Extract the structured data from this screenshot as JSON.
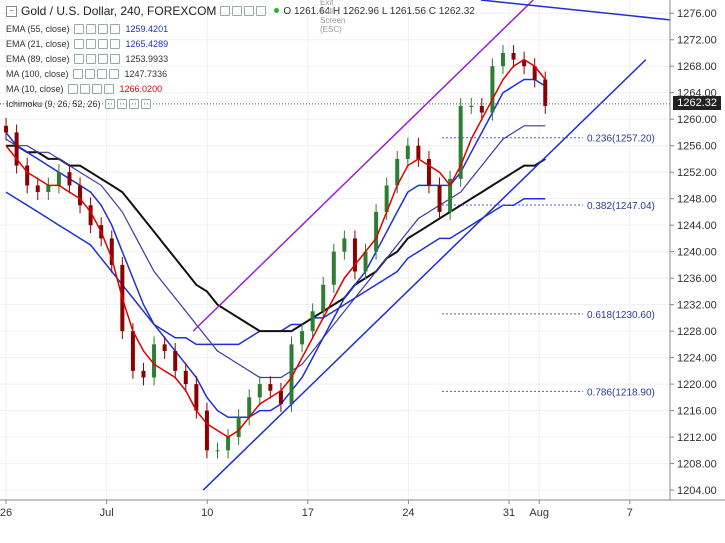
{
  "header": {
    "symbol": "Gold / U.S. Dollar, 240, FOREXCOM",
    "ohlc": "O 1261.64  H 1262.96  L 1261.56  C 1262.32",
    "exit_full_screen": "Exit Full Screen (ESC)",
    "last_price": "1262.32"
  },
  "indicators": [
    {
      "label": "EMA (55, close)",
      "value": "1259.4201",
      "color": "#1e2fd6"
    },
    {
      "label": "EMA (21, close)",
      "value": "1265.4289",
      "color": "#1e2fd6"
    },
    {
      "label": "EMA (89, close)",
      "value": "1253.9933",
      "color": "#333333"
    },
    {
      "label": "MA (100, close)",
      "value": "1247.7336",
      "color": "#333333"
    },
    {
      "label": "MA (10, close)",
      "value": "1266.0200",
      "color": "#e00000"
    },
    {
      "label": "Ichimoku (9, 26, 52, 26)",
      "value": "",
      "color": "#6a6aff"
    }
  ],
  "chart_data": {
    "type": "line",
    "y_ticks": [
      "1276.00",
      "1272.00",
      "1268.00",
      "1264.00",
      "1260.00",
      "1256.00",
      "1252.00",
      "1248.00",
      "1244.00",
      "1240.00",
      "1236.00",
      "1232.00",
      "1228.00",
      "1224.00",
      "1220.00",
      "1216.00",
      "1212.00",
      "1208.00",
      "1204.00"
    ],
    "x_ticks": [
      {
        "label": "26",
        "t": 0
      },
      {
        "label": "Jul",
        "t": 5
      },
      {
        "label": "10",
        "t": 10
      },
      {
        "label": "17",
        "t": 15
      },
      {
        "label": "24",
        "t": 20
      },
      {
        "label": "31",
        "t": 25
      },
      {
        "label": "Aug",
        "t": 26.5
      },
      {
        "label": "7",
        "t": 31
      }
    ],
    "ylim": [
      1202.5,
      1278
    ],
    "xlim": [
      -0.3,
      33
    ],
    "candles_close": [
      1258,
      1253,
      1250,
      1249,
      1250,
      1252,
      1250,
      1247,
      1244,
      1242,
      1238,
      1228,
      1222,
      1221,
      1226,
      1225,
      1222,
      1220,
      1216,
      1210,
      1210,
      1212,
      1215,
      1218,
      1220,
      1219,
      1217,
      1226,
      1228,
      1231,
      1235,
      1240,
      1242,
      1237,
      1240,
      1246,
      1250,
      1254,
      1256,
      1254,
      1250,
      1246,
      1251,
      1262,
      1262,
      1261,
      1268,
      1270,
      1269,
      1268,
      1266,
      1262
    ],
    "sma10": [
      1256,
      1254,
      1252,
      1251,
      1250,
      1250,
      1249,
      1248,
      1246,
      1243,
      1239,
      1233,
      1228,
      1225,
      1223,
      1222,
      1221,
      1219,
      1216,
      1214,
      1213,
      1212,
      1213,
      1215,
      1217,
      1218,
      1219,
      1221,
      1224,
      1227,
      1230,
      1233,
      1236,
      1238,
      1240,
      1242,
      1246,
      1250,
      1253,
      1254,
      1253,
      1252,
      1250,
      1253,
      1257,
      1260,
      1263,
      1266,
      1268,
      1269,
      1268,
      1266
    ],
    "ema21": [
      1258,
      1256,
      1255,
      1254,
      1253,
      1252,
      1251,
      1250,
      1249,
      1247,
      1244,
      1240,
      1236,
      1232,
      1229,
      1227,
      1225,
      1223,
      1221,
      1218,
      1216,
      1215,
      1215,
      1215,
      1216,
      1216,
      1217,
      1219,
      1221,
      1224,
      1227,
      1230,
      1233,
      1235,
      1237,
      1240,
      1243,
      1246,
      1249,
      1250,
      1250,
      1250,
      1250,
      1252,
      1255,
      1258,
      1261,
      1264,
      1265,
      1266,
      1266,
      1265
    ],
    "ema55": [
      1257,
      1256,
      1256,
      1255,
      1255,
      1254,
      1253,
      1252,
      1251,
      1250,
      1248,
      1246,
      1243,
      1240,
      1237,
      1235,
      1233,
      1231,
      1229,
      1227,
      1225,
      1224,
      1223,
      1222,
      1221,
      1221,
      1221,
      1222,
      1223,
      1225,
      1227,
      1229,
      1231,
      1233,
      1235,
      1237,
      1239,
      1241,
      1243,
      1245,
      1246,
      1247,
      1248,
      1249,
      1251,
      1253,
      1255,
      1257,
      1258,
      1259,
      1259,
      1259
    ],
    "ema89": [
      1256,
      1256,
      1255,
      1255,
      1254,
      1254,
      1253,
      1253,
      1252,
      1251,
      1250,
      1249,
      1247,
      1245,
      1243,
      1241,
      1239,
      1237,
      1235,
      1234,
      1232,
      1231,
      1230,
      1229,
      1228,
      1228,
      1228,
      1228,
      1229,
      1230,
      1231,
      1232,
      1233,
      1235,
      1236,
      1237,
      1239,
      1240,
      1242,
      1243,
      1244,
      1245,
      1246,
      1247,
      1248,
      1249,
      1250,
      1251,
      1252,
      1253,
      1253,
      1254
    ],
    "ma100": [
      1249,
      1248,
      1247,
      1246,
      1245,
      1244,
      1243,
      1242,
      1241,
      1239,
      1237,
      1235,
      1233,
      1231,
      1229,
      1228,
      1227,
      1227,
      1226,
      1226,
      1226,
      1226,
      1226,
      1227,
      1228,
      1228,
      1228,
      1229,
      1229,
      1230,
      1230,
      1231,
      1232,
      1233,
      1234,
      1235,
      1236,
      1237,
      1239,
      1240,
      1241,
      1242,
      1242,
      1243,
      1244,
      1245,
      1246,
      1247,
      1247,
      1248,
      1248,
      1248
    ],
    "trendlines": [
      {
        "name": "upper channel",
        "color": "#9b1fd6",
        "points": [
          [
            9.3,
            1228
          ],
          [
            26.2,
            1278
          ]
        ]
      },
      {
        "name": "lower channel",
        "color": "#1e2fd6",
        "points": [
          [
            9.8,
            1204
          ],
          [
            31.8,
            1269
          ]
        ]
      },
      {
        "name": "resistance",
        "color": "#1e2fd6",
        "points": [
          [
            23.6,
            1278
          ],
          [
            33,
            1275
          ]
        ]
      }
    ],
    "fib_levels": [
      {
        "label": "0.236(1257.20)",
        "value": 1257.2
      },
      {
        "label": "0.382(1247.04)",
        "value": 1247.04
      },
      {
        "label": "0.618(1230.60)",
        "value": 1230.6
      },
      {
        "label": "0.786(1218.90)",
        "value": 1218.9
      }
    ],
    "last_price": 1262.32
  }
}
